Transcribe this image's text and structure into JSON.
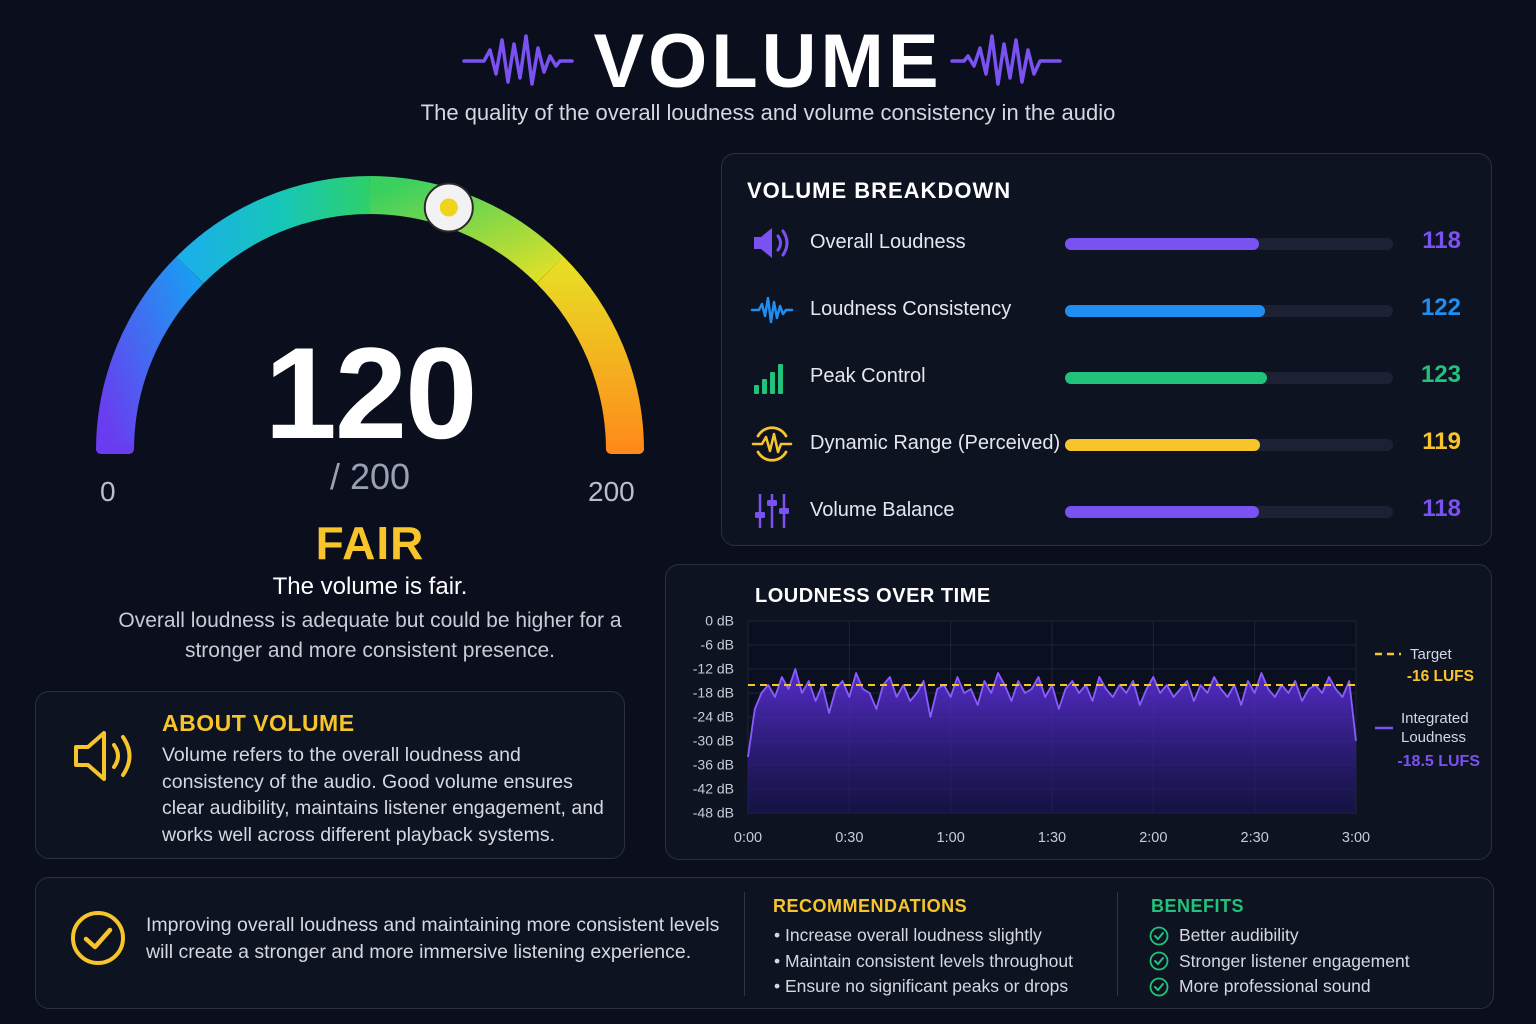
{
  "header": {
    "title": "VOLUME",
    "subtitle": "The quality of the overall loudness and volume consistency in the audio"
  },
  "gauge": {
    "score": "120",
    "score_value": 120,
    "max_label": "/ 200",
    "min_label": "0",
    "end_label": "200",
    "max": 200,
    "rating": "FAIR",
    "rating_line": "The volume is fair.",
    "rating_desc": "Overall loudness is adequate but could be higher for a stronger and more consistent presence."
  },
  "about": {
    "title": "ABOUT VOLUME",
    "text": "Volume refers to the overall loudness and consistency of the audio. Good volume ensures clear audibility, maintains listener engagement, and works well across different playback systems.",
    "icon": "speaker-icon"
  },
  "breakdown": {
    "title": "VOLUME BREAKDOWN",
    "max": 200,
    "items": [
      {
        "label": "Overall Loudness",
        "value": "118",
        "score": 118,
        "color": "#7b52f2",
        "icon": "speaker-icon"
      },
      {
        "label": "Loudness Consistency",
        "value": "122",
        "score": 122,
        "color": "#1f8ef0",
        "icon": "waveform-icon"
      },
      {
        "label": "Peak Control",
        "value": "123",
        "score": 123,
        "color": "#22c27a",
        "icon": "signal-bars-icon"
      },
      {
        "label": "Dynamic Range (Perceived)",
        "value": "119",
        "score": 119,
        "color": "#f7c52b",
        "icon": "dynamic-range-icon"
      },
      {
        "label": "Volume Balance",
        "value": "118",
        "score": 118,
        "color": "#7b52f2",
        "icon": "sliders-icon"
      }
    ]
  },
  "chart_data": {
    "type": "area",
    "title": "LOUDNESS OVER TIME",
    "y_ticks": [
      "0 dB",
      "-6 dB",
      "-12 dB",
      "-18 dB",
      "-24 dB",
      "-30 dB",
      "-36 dB",
      "-42 dB",
      "-48 dB"
    ],
    "x_ticks": [
      "0:00",
      "0:30",
      "1:00",
      "1:30",
      "2:00",
      "2:30",
      "3:00"
    ],
    "xlim_seconds": [
      0,
      180
    ],
    "ylim_db": [
      -48,
      0
    ],
    "target": {
      "label": "Target",
      "value_label": "-16 LUFS",
      "value": -16,
      "color": "#f7c52b"
    },
    "integrated": {
      "label": "Integrated Loudness",
      "value_label": "-18.5 LUFS",
      "value": -18.5,
      "color": "#7b52f2"
    },
    "series": [
      {
        "x": [
          0,
          2,
          4,
          6,
          8,
          10,
          12,
          14,
          16,
          18,
          20,
          22,
          24,
          26,
          28,
          30,
          32,
          34,
          36,
          38,
          40,
          42,
          44,
          46,
          48,
          50,
          52,
          54,
          56,
          58,
          60,
          62,
          64,
          66,
          68,
          70,
          72,
          74,
          76,
          78,
          80,
          82,
          84,
          86,
          88,
          90,
          92,
          94,
          96,
          98,
          100,
          102,
          104,
          106,
          108,
          110,
          112,
          114,
          116,
          118,
          120,
          122,
          124,
          126,
          128,
          130,
          132,
          134,
          136,
          138,
          140,
          142,
          144,
          146,
          148,
          150,
          152,
          154,
          156,
          158,
          160,
          162,
          164,
          166,
          168,
          170,
          172,
          174,
          176,
          178,
          180
        ],
        "y": [
          -34,
          -22,
          -18,
          -16,
          -19,
          -14,
          -17,
          -12,
          -18,
          -15,
          -20,
          -16,
          -23,
          -17,
          -15,
          -19,
          -13,
          -17,
          -18,
          -22,
          -16,
          -14,
          -19,
          -16,
          -20,
          -18,
          -15,
          -24,
          -17,
          -16,
          -19,
          -14,
          -18,
          -17,
          -21,
          -15,
          -18,
          -13,
          -16,
          -20,
          -15,
          -18,
          -17,
          -14,
          -19,
          -16,
          -22,
          -17,
          -15,
          -18,
          -16,
          -20,
          -14,
          -17,
          -19,
          -16,
          -18,
          -15,
          -21,
          -17,
          -14,
          -18,
          -16,
          -19,
          -17,
          -15,
          -20,
          -16,
          -18,
          -14,
          -17,
          -19,
          -16,
          -21,
          -15,
          -18,
          -13,
          -17,
          -19,
          -16,
          -18,
          -15,
          -20,
          -17,
          -16,
          -18,
          -14,
          -17,
          -19,
          -15,
          -30
        ]
      }
    ]
  },
  "bottom": {
    "summary": "Improving overall loudness and maintaining more consistent levels will create a stronger and more immersive listening experience.",
    "recommendations_title": "RECOMMENDATIONS",
    "recommendations": [
      "• Increase overall loudness slightly",
      "• Maintain consistent levels throughout",
      "• Ensure no significant peaks or drops"
    ],
    "benefits_title": "BENEFITS",
    "benefits": [
      "Better audibility",
      "Stronger listener engagement",
      "More professional sound"
    ]
  }
}
